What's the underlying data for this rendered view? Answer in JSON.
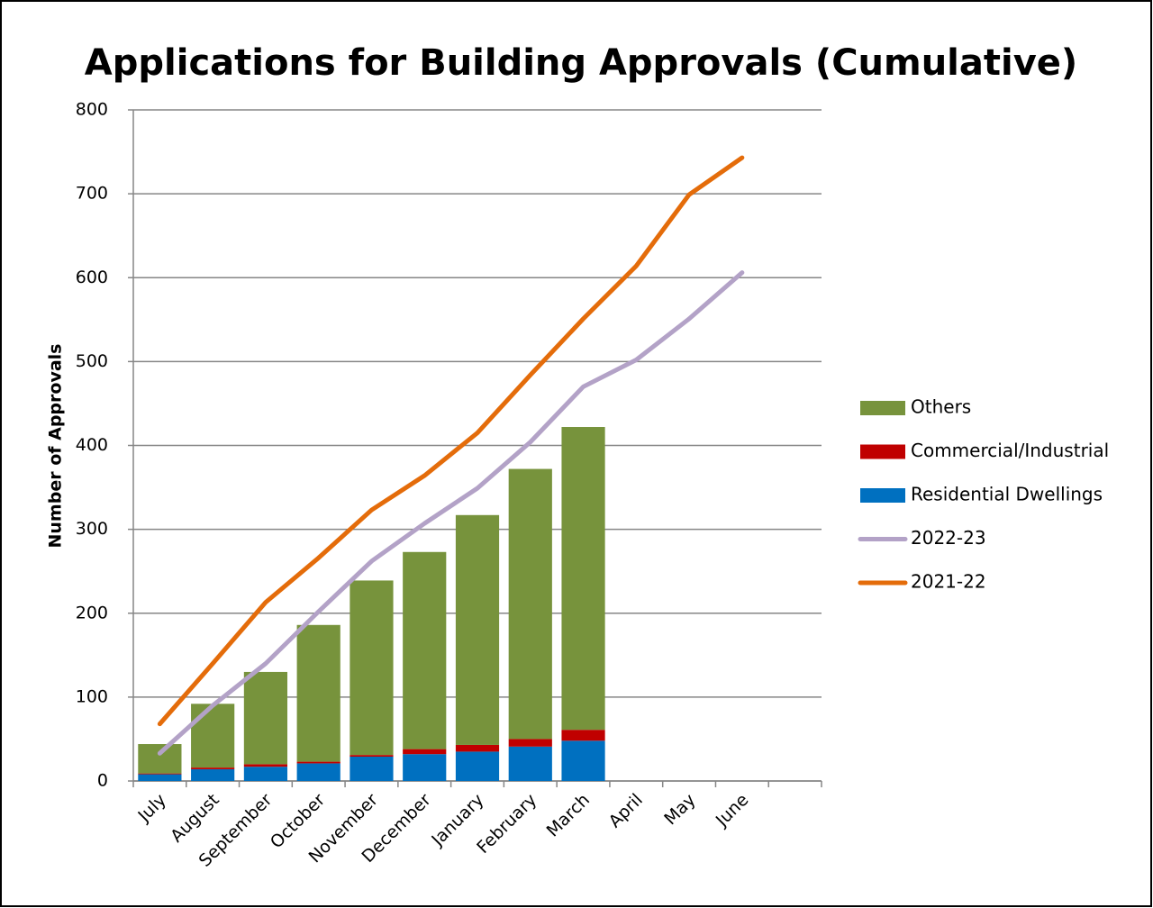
{
  "chart_data": {
    "type": "bar",
    "title": "Applications for Building Approvals (Cumulative)",
    "y_label": "Number of Approvals",
    "categories": [
      "July",
      "August",
      "September",
      "October",
      "November",
      "December",
      "January",
      "February",
      "March",
      "April",
      "May",
      "June",
      null
    ],
    "series": [
      {
        "name": "Others",
        "type": "bar",
        "color": "#77933c",
        "values": [
          35,
          76,
          110,
          163,
          208,
          235,
          274,
          322,
          361,
          null,
          null,
          null,
          null
        ]
      },
      {
        "name": "Commercial/Industrial",
        "type": "bar",
        "color": "#c00000",
        "values": [
          1,
          2,
          3,
          2,
          2,
          6,
          8,
          9,
          13,
          null,
          null,
          null,
          null
        ]
      },
      {
        "name": "Residential Dwellings",
        "type": "bar",
        "color": "#0070c0",
        "values": [
          8,
          14,
          17,
          21,
          29,
          32,
          35,
          41,
          48,
          null,
          null,
          null,
          null
        ]
      },
      {
        "name": "2022-23",
        "type": "line",
        "color": "#b3a2c7",
        "values": [
          33,
          90,
          140,
          202,
          262,
          307,
          349,
          404,
          470,
          502,
          551,
          606,
          null
        ]
      },
      {
        "name": "2021-22",
        "type": "line",
        "color": "#e46c0a",
        "values": [
          68,
          140,
          213,
          266,
          323,
          364,
          415,
          484,
          551,
          614,
          699,
          743,
          null
        ]
      }
    ],
    "stacked": true,
    "ylim": [
      0,
      800
    ],
    "yticks": [
      0,
      100,
      200,
      300,
      400,
      500,
      600,
      700,
      800
    ],
    "grid": true,
    "legend": "right"
  }
}
